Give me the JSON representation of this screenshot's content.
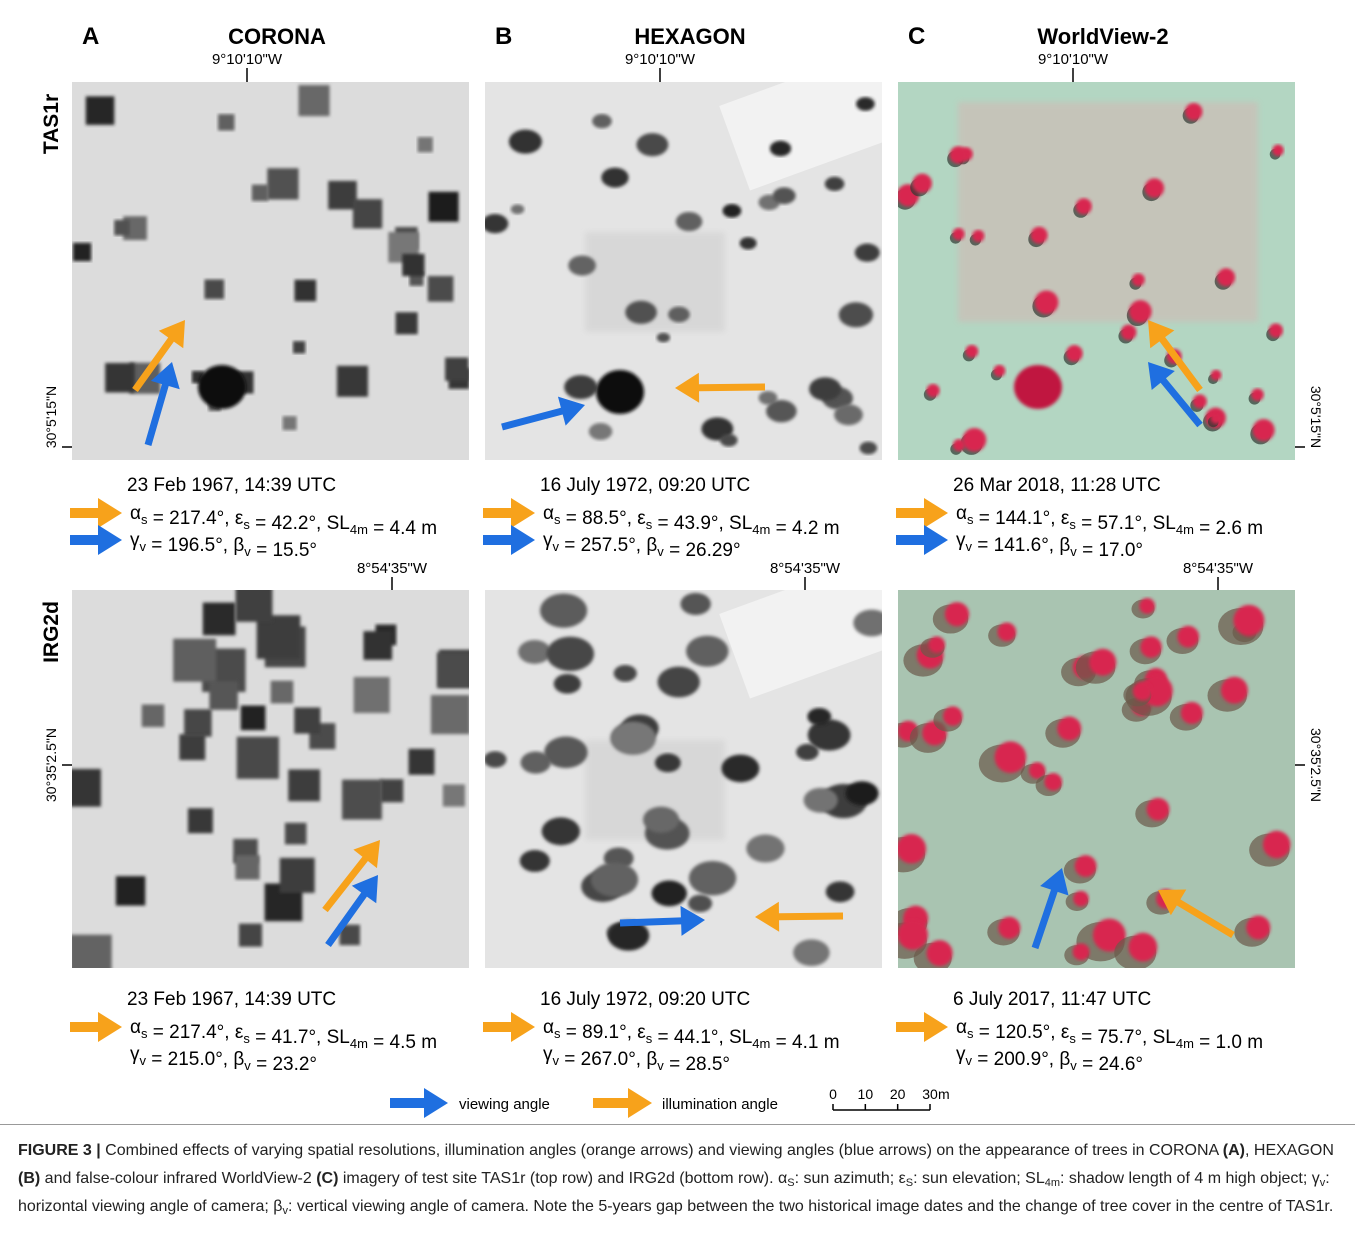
{
  "columns": [
    {
      "letter": "A",
      "title": "CORONA"
    },
    {
      "letter": "B",
      "title": "HEXAGON"
    },
    {
      "letter": "C",
      "title": "WorldView-2"
    }
  ],
  "rows": [
    {
      "label": "TAS1r",
      "longitude": "9°10'10\"W",
      "latitude": "30°5'15\"N",
      "panels": [
        {
          "date": "23 Feb 1967, 14:39 UTC",
          "sun": [
            "α",
            {
              "sub": "s"
            },
            " = 217.4°, ε",
            {
              "sub": "s"
            },
            " = 42.2°, SL",
            {
              "sub": "4m"
            },
            " = 4.4 m"
          ],
          "view": [
            "γ",
            {
              "sub": "v"
            },
            " = 196.5°, β",
            {
              "sub": "v"
            },
            " = 15.5°"
          ]
        },
        {
          "date": "16 July 1972, 09:20 UTC",
          "sun": [
            "α",
            {
              "sub": "s"
            },
            " = 88.5°, ε",
            {
              "sub": "s"
            },
            " = 43.9°, SL",
            {
              "sub": "4m"
            },
            " = 4.2 m"
          ],
          "view": [
            "γ",
            {
              "sub": "v"
            },
            " = 257.5°, β",
            {
              "sub": "v"
            },
            " = 26.29°"
          ]
        },
        {
          "date": "26 Mar 2018, 11:28 UTC",
          "sun": [
            "α",
            {
              "sub": "s"
            },
            " = 144.1°, ε",
            {
              "sub": "s"
            },
            " = 57.1°, SL",
            {
              "sub": "4m"
            },
            " = 2.6 m"
          ],
          "view": [
            "γ",
            {
              "sub": "v"
            },
            " = 141.6°, β",
            {
              "sub": "v"
            },
            " = 17.0°"
          ]
        }
      ]
    },
    {
      "label": "IRG2d",
      "longitude": "8°54'35\"W",
      "latitude": "30°35'2.5\"N",
      "panels": [
        {
          "date": "23 Feb 1967, 14:39 UTC",
          "sun": [
            "α",
            {
              "sub": "s"
            },
            " = 217.4°, ε",
            {
              "sub": "s"
            },
            " = 41.7°, SL",
            {
              "sub": "4m"
            },
            " = 4.5 m"
          ],
          "view": [
            "γ",
            {
              "sub": "v"
            },
            " = 215.0°, β",
            {
              "sub": "v"
            },
            " = 23.2°"
          ]
        },
        {
          "date": "16 July 1972, 09:20 UTC",
          "sun": [
            "α",
            {
              "sub": "s"
            },
            " = 89.1°, ε",
            {
              "sub": "s"
            },
            " = 44.1°, SL",
            {
              "sub": "4m"
            },
            " = 4.1 m"
          ],
          "view": [
            "γ",
            {
              "sub": "v"
            },
            " = 267.0°, β",
            {
              "sub": "v"
            },
            " = 28.5°"
          ]
        },
        {
          "date": "6 July 2017, 11:47 UTC",
          "sun": [
            "α",
            {
              "sub": "s"
            },
            " = 120.5°, ε",
            {
              "sub": "s"
            },
            " = 75.7°, SL",
            {
              "sub": "4m"
            },
            " = 1.0 m"
          ],
          "view": [
            "γ",
            {
              "sub": "v"
            },
            " = 200.9°, β",
            {
              "sub": "v"
            },
            " = 24.6°"
          ]
        }
      ]
    }
  ],
  "legend": {
    "viewing": "viewing angle",
    "illumination": "illumination angle"
  },
  "scale_bar": {
    "ticks": [
      0,
      10,
      20,
      30
    ],
    "unit": "m"
  },
  "caption": [
    {
      "b": "FIGURE 3 |"
    },
    " Combined effects of varying spatial resolutions, illumination angles (orange arrows) and viewing angles (blue arrows) on the appearance of trees in CORONA ",
    {
      "b": "(A)"
    },
    ", HEXAGON ",
    {
      "b": "(B)"
    },
    " and false-colour infrared WorldView-2 ",
    {
      "b": "(C)"
    },
    " imagery of test site TAS1r (top row) and IRG2d (bottom row). α",
    {
      "sub": "S"
    },
    ": sun azimuth; ε",
    {
      "sub": "S"
    },
    ": sun elevation; SL",
    {
      "sub": "4m"
    },
    ": shadow length of 4 m high object; γ",
    {
      "sub": "v"
    },
    ": horizontal viewing angle of camera; β",
    {
      "sub": "v"
    },
    ": vertical viewing angle of camera. Note the 5-years gap between the two historical image dates and the change of tree cover in the centre of TAS1r."
  ]
}
